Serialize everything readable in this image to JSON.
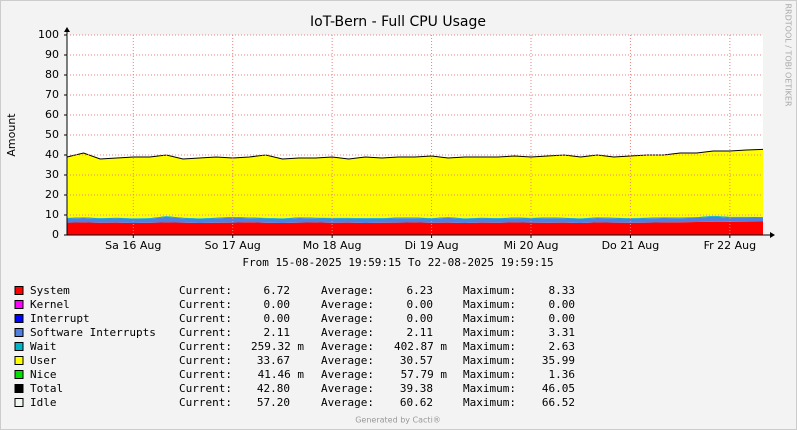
{
  "chart_data": {
    "type": "stacked_area",
    "title": "IoT-Bern - Full CPU Usage",
    "y_label": "Amount",
    "side_text": "RRDTOOL / TOBI OETIKER",
    "period": "From 15-08-2025 19:59:15 To 22-08-2025 19:59:15",
    "footer": "Generated by Cacti®",
    "categories": [
      null,
      null,
      null,
      null,
      "Sa 16 Aug",
      null,
      null,
      null,
      null,
      null,
      "So 17 Aug",
      null,
      null,
      null,
      null,
      null,
      "Mo 18 Aug",
      null,
      null,
      null,
      null,
      null,
      "Di 19 Aug",
      null,
      null,
      null,
      null,
      null,
      "Mi 20 Aug",
      null,
      null,
      null,
      null,
      null,
      "Do 21 Aug",
      null,
      null,
      null,
      null,
      null,
      "Fr 22 Aug",
      null,
      null
    ],
    "ylim": [
      0,
      100
    ],
    "yticks": [
      0,
      10,
      20,
      30,
      40,
      50,
      60,
      70,
      80,
      90,
      100
    ],
    "grid": true,
    "series": [
      {
        "name": "System",
        "color": "#ff0000",
        "values": [
          6.2,
          6.3,
          6.1,
          6.2,
          6.0,
          6.1,
          6.3,
          6.2,
          6.0,
          6.1,
          6.2,
          6.4,
          6.1,
          6.0,
          6.2,
          6.3,
          6.1,
          6.2,
          6.0,
          6.1,
          6.2,
          6.3,
          6.1,
          6.2,
          6.0,
          6.2,
          6.1,
          6.3,
          6.2,
          6.1,
          6.2,
          6.0,
          6.3,
          6.2,
          6.1,
          6.2,
          6.3,
          6.4,
          6.5,
          6.6,
          6.6,
          6.7,
          6.72
        ]
      },
      {
        "name": "Software Interrupts",
        "color": "#4f7fdf",
        "values": [
          2.0,
          2.2,
          2.0,
          2.1,
          2.0,
          2.0,
          2.8,
          2.1,
          2.0,
          2.2,
          2.5,
          2.0,
          2.1,
          2.0,
          2.3,
          2.0,
          2.1,
          2.0,
          2.1,
          2.0,
          2.2,
          2.1,
          2.0,
          2.4,
          2.0,
          2.1,
          2.0,
          2.1,
          2.0,
          2.3,
          2.1,
          2.0,
          2.2,
          2.1,
          2.0,
          2.1,
          2.2,
          2.0,
          2.1,
          2.6,
          2.1,
          2.0,
          2.11
        ]
      },
      {
        "name": "Wait",
        "color": "#00b5c8",
        "values": [
          0.4,
          0.4,
          0.4,
          0.4,
          0.4,
          0.4,
          0.4,
          0.4,
          0.4,
          0.4,
          0.4,
          0.4,
          0.4,
          0.4,
          0.4,
          0.4,
          0.4,
          0.4,
          0.4,
          0.4,
          0.4,
          0.4,
          0.4,
          0.4,
          0.4,
          0.4,
          0.4,
          0.4,
          0.4,
          0.4,
          0.4,
          0.4,
          0.4,
          0.4,
          0.4,
          0.4,
          0.4,
          0.4,
          0.4,
          0.4,
          0.4,
          0.4,
          0.26
        ]
      },
      {
        "name": "User",
        "color": "#ffff00",
        "values": [
          30.3,
          32.0,
          29.4,
          29.7,
          30.5,
          30.4,
          30.4,
          29.2,
          30.0,
          30.2,
          29.3,
          30.1,
          31.3,
          29.5,
          29.5,
          29.7,
          30.3,
          29.3,
          30.4,
          29.9,
          30.1,
          30.1,
          30.9,
          29.4,
          30.5,
          30.2,
          30.4,
          30.6,
          30.3,
          30.6,
          31.2,
          30.5,
          31.0,
          30.2,
          30.9,
          31.2,
          31.0,
          32.1,
          31.9,
          32.3,
          32.8,
          33.3,
          33.67
        ]
      },
      {
        "name": "Total",
        "color": "#000000",
        "line": true,
        "values": [
          39,
          41,
          38,
          38.5,
          39,
          39,
          40,
          38,
          38.5,
          39,
          38.5,
          39,
          40,
          38,
          38.5,
          38.5,
          39,
          38,
          39,
          38.5,
          39,
          39,
          39.5,
          38.5,
          39,
          39,
          39,
          39.5,
          39,
          39.5,
          40,
          39,
          40,
          39,
          39.5,
          40,
          40,
          41,
          41,
          42,
          42,
          42.5,
          42.8
        ]
      }
    ],
    "legend": {
      "labels": [
        "Current:",
        "Average:",
        "Maximum:"
      ],
      "rows": [
        {
          "name": "System",
          "color": "#ff0000",
          "stats": [
            "6.72",
            "6.23",
            "8.33"
          ]
        },
        {
          "name": "Kernel",
          "color": "#ff00ff",
          "stats": [
            "0.00",
            "0.00",
            "0.00"
          ]
        },
        {
          "name": "Interrupt",
          "color": "#0000ff",
          "stats": [
            "0.00",
            "0.00",
            "0.00"
          ]
        },
        {
          "name": "Software Interrupts",
          "color": "#4f7fdf",
          "stats": [
            "2.11",
            "2.11",
            "3.31"
          ]
        },
        {
          "name": "Wait",
          "color": "#00b5c8",
          "stats": [
            "259.32 m",
            "402.87 m",
            "2.63"
          ]
        },
        {
          "name": "User",
          "color": "#ffff00",
          "stats": [
            "33.67",
            "30.57",
            "35.99"
          ]
        },
        {
          "name": "Nice",
          "color": "#00e000",
          "stats": [
            "41.46 m",
            "57.79 m",
            "1.36"
          ]
        },
        {
          "name": "Total",
          "color": "#000000",
          "stats": [
            "42.80",
            "39.38",
            "46.05"
          ]
        },
        {
          "name": "Idle",
          "color": "#f0f8f0",
          "stats": [
            "57.20",
            "60.62",
            "66.52"
          ]
        }
      ]
    }
  }
}
